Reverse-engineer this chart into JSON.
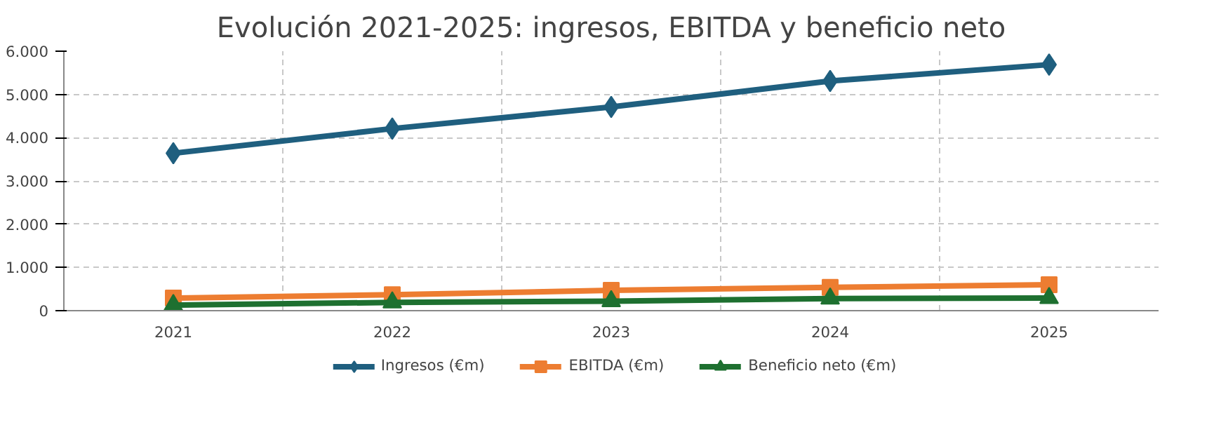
{
  "chart_data": {
    "type": "line",
    "title": "Evolución 2021-2025: ingresos, EBITDA y beneficio neto",
    "categories": [
      "2021",
      "2022",
      "2023",
      "2024",
      "2025"
    ],
    "series": [
      {
        "name": "Ingresos (€m)",
        "color": "#1f5f7f",
        "marker": "diamond",
        "values": [
          3640,
          4210,
          4710,
          5310,
          5690
        ]
      },
      {
        "name": "EBITDA (€m)",
        "color": "#ed7d31",
        "marker": "square",
        "values": [
          290,
          370,
          470,
          540,
          600
        ]
      },
      {
        "name": "Beneficio neto (€m)",
        "color": "#1e7030",
        "marker": "triangle",
        "values": [
          130,
          190,
          220,
          280,
          290
        ]
      }
    ],
    "ylim": [
      0,
      6000
    ],
    "yticks": [
      0,
      {
        "value": 1000,
        "label": "1.000"
      },
      {
        "value": 2000,
        "label": "2.000"
      },
      {
        "value": 3000,
        "label": "3.000"
      },
      {
        "value": 4000,
        "label": "4.000"
      },
      {
        "value": 5000,
        "label": "5.000"
      },
      {
        "value": 6000,
        "label": "6.000"
      }
    ],
    "grid": true,
    "legend": "bottom",
    "line_style": "solid"
  }
}
